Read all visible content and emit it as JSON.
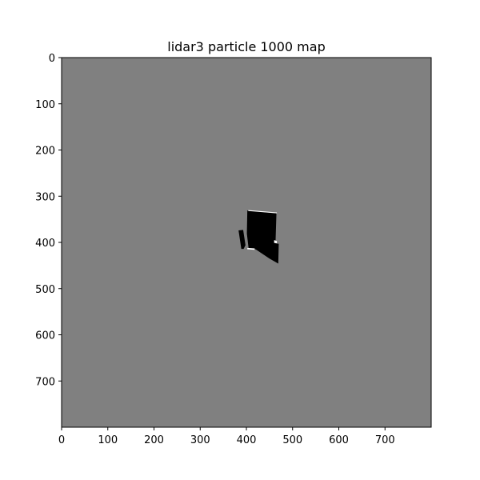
{
  "chart_data": {
    "type": "heatmap",
    "title": "lidar3 particle 1000 map",
    "xlabel": "",
    "ylabel": "",
    "xlim": [
      0,
      800
    ],
    "ylim": [
      800,
      0
    ],
    "x_ticks": [
      0,
      100,
      200,
      300,
      400,
      500,
      600,
      700
    ],
    "y_ticks": [
      0,
      100,
      200,
      300,
      400,
      500,
      600,
      700
    ],
    "grid": false,
    "colormap": "gray",
    "background_value": "unknown",
    "colors": {
      "unknown": "#808080",
      "occupied": "#000000",
      "free": "#ffffff",
      "frame": "#000000"
    },
    "regions": [
      {
        "name": "occupied-block-main",
        "value": "occupied",
        "polygon": [
          [
            402,
            331
          ],
          [
            465,
            337
          ],
          [
            463,
            402
          ],
          [
            470,
            403
          ],
          [
            469,
            446
          ],
          [
            450,
            435
          ],
          [
            420,
            415
          ],
          [
            405,
            415
          ],
          [
            401,
            381
          ]
        ]
      },
      {
        "name": "occupied-block-left",
        "value": "occupied",
        "polygon": [
          [
            383,
            374
          ],
          [
            393,
            373
          ],
          [
            398,
            406
          ],
          [
            394,
            414
          ],
          [
            389,
            414
          ]
        ]
      },
      {
        "name": "free-edge-top",
        "value": "free",
        "polygon": [
          [
            404,
            330
          ],
          [
            466,
            335
          ],
          [
            466,
            337
          ],
          [
            404,
            332
          ]
        ]
      },
      {
        "name": "free-edge-right",
        "value": "free",
        "polygon": [
          [
            460,
            395
          ],
          [
            466,
            397
          ],
          [
            466,
            402
          ],
          [
            460,
            401
          ]
        ]
      },
      {
        "name": "free-edge-bottom",
        "value": "free",
        "polygon": [
          [
            402,
            412
          ],
          [
            418,
            413
          ],
          [
            418,
            416
          ],
          [
            402,
            415
          ]
        ]
      }
    ]
  }
}
